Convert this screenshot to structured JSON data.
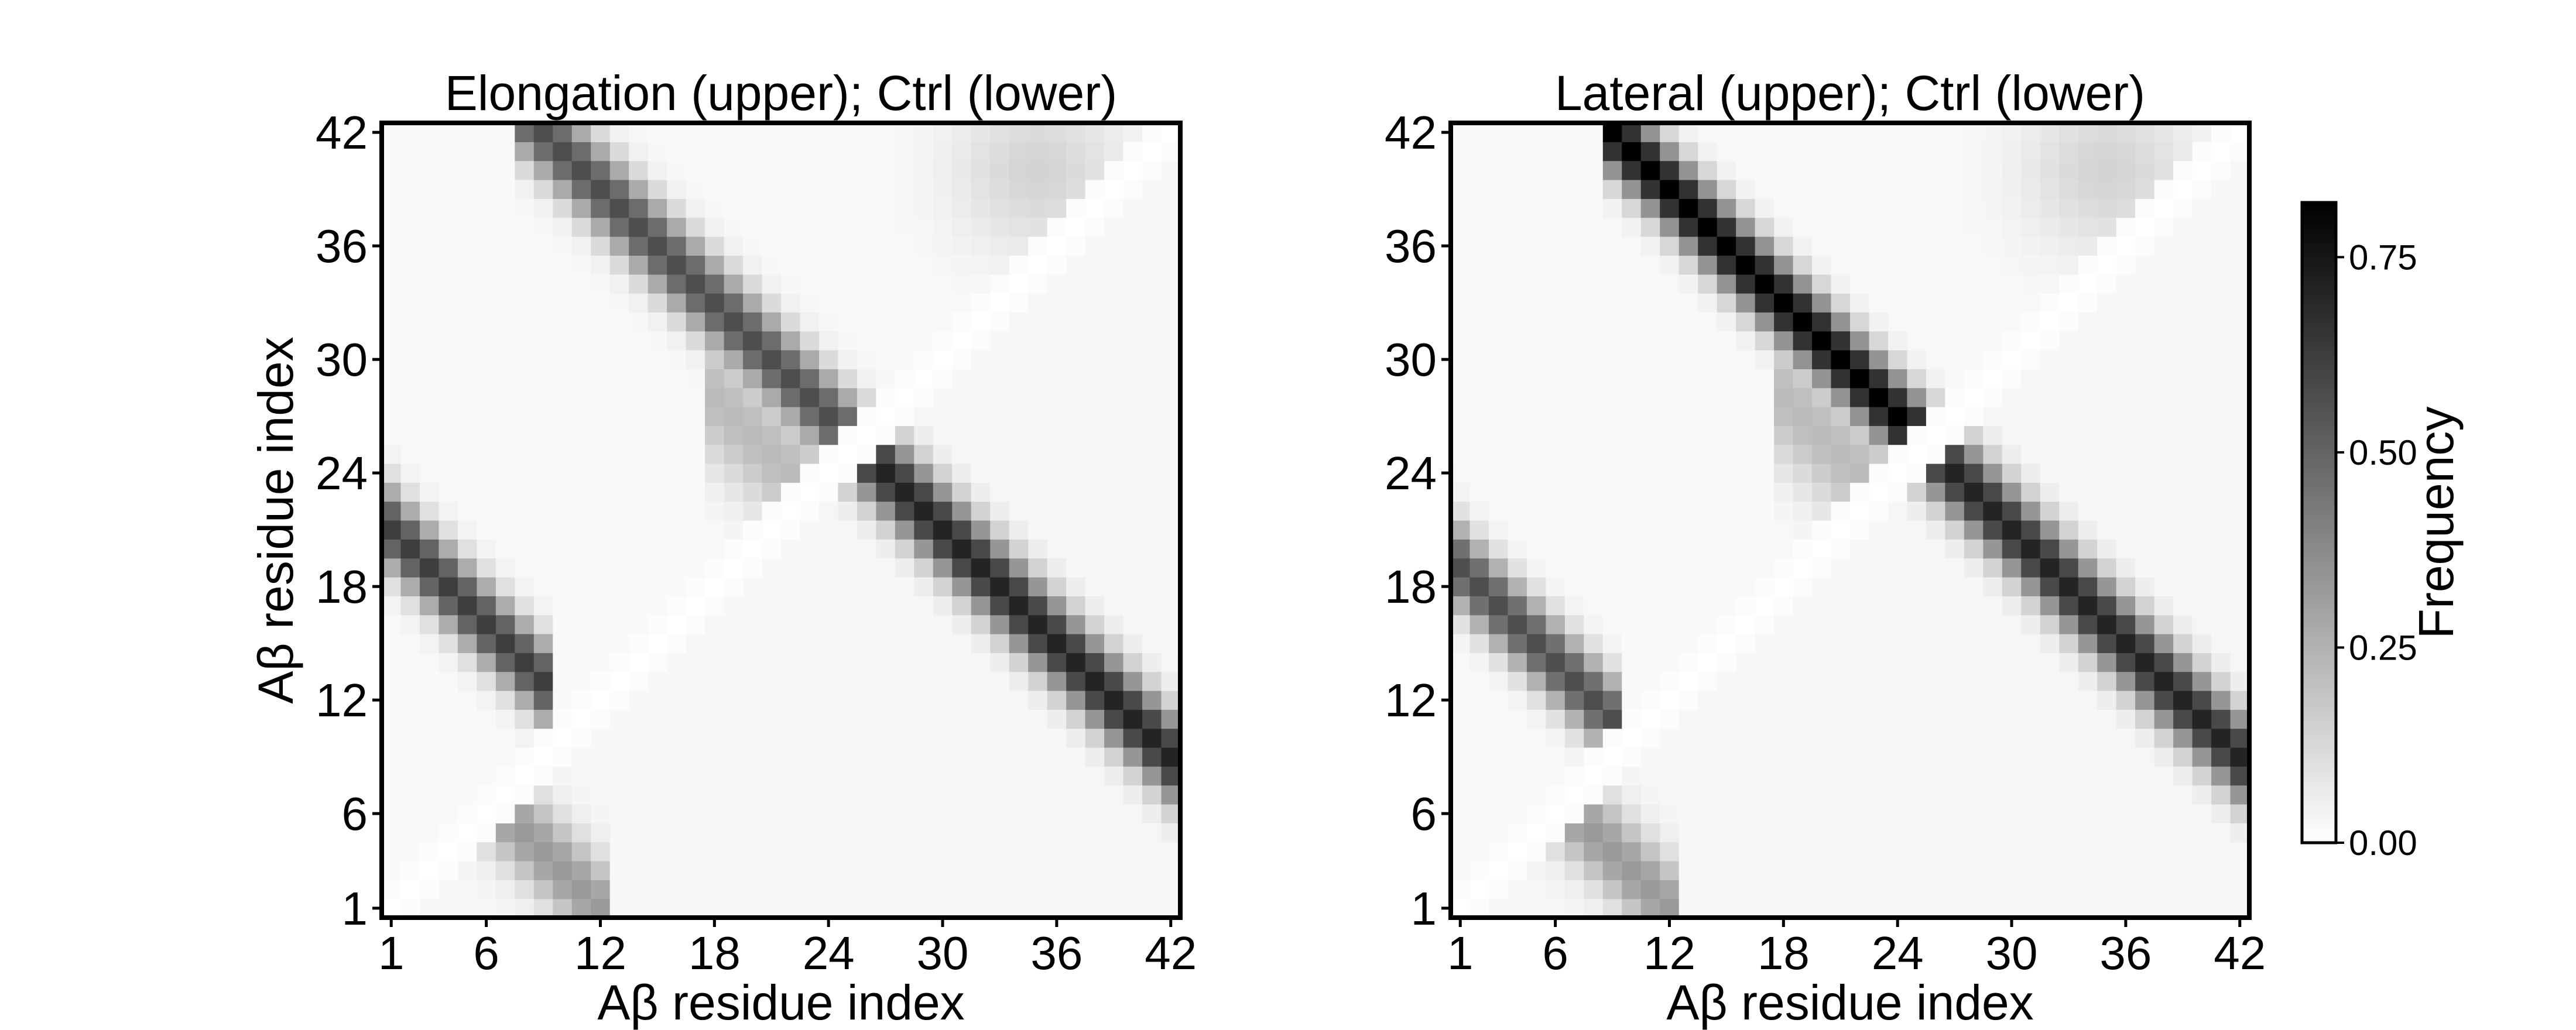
{
  "chart_data": [
    {
      "type": "heatmap",
      "title": "Elongation (upper); Ctrl (lower)",
      "xlabel": "Aβ residue index",
      "ylabel": "Aβ residue index",
      "x_range": [
        1,
        42
      ],
      "y_range": [
        1,
        42
      ],
      "xticks": [
        "1",
        "6",
        "12",
        "18",
        "24",
        "30",
        "36",
        "42"
      ],
      "yticks": [
        "1",
        "6",
        "12",
        "18",
        "24",
        "30",
        "36",
        "42"
      ],
      "upper_triangle": "Elongation",
      "lower_triangle": "Ctrl",
      "contact_bands": {
        "upper_antiparallel": [
          {
            "center": 51,
            "width": 1.6,
            "peak": 0.55,
            "i_from": 8,
            "i_to": 27
          },
          {
            "center": 22,
            "width": 1.5,
            "peak": 0.6,
            "i_from": 1,
            "i_to": 9
          },
          {
            "center": 46,
            "width": 2.5,
            "peak": 0.2,
            "i_from": 18,
            "i_to": 24
          }
        ],
        "lower_antiparallel": [
          {
            "center": 51,
            "width": 1.6,
            "peak": 0.68,
            "i_from": 24,
            "i_to": 42
          },
          {
            "center": 13,
            "width": 1.8,
            "peak": 0.3,
            "i_from": 5,
            "i_to": 12
          }
        ],
        "upper_corner": {
          "i_center": 35,
          "j_center": 40,
          "peak": 0.12
        }
      }
    },
    {
      "type": "heatmap",
      "title": "Lateral (upper); Ctrl (lower)",
      "xlabel": "Aβ residue index",
      "ylabel": "",
      "x_range": [
        1,
        42
      ],
      "y_range": [
        1,
        42
      ],
      "xticks": [
        "1",
        "6",
        "12",
        "18",
        "24",
        "30",
        "36",
        "42"
      ],
      "yticks": [
        "1",
        "6",
        "12",
        "18",
        "24",
        "30",
        "36",
        "42"
      ],
      "upper_triangle": "Lateral",
      "lower_triangle": "Ctrl",
      "contact_bands": {
        "upper_antiparallel": [
          {
            "center": 51,
            "width": 1.5,
            "peak": 0.8,
            "i_from": 9,
            "i_to": 27
          },
          {
            "center": 20,
            "width": 1.5,
            "peak": 0.55,
            "i_from": 1,
            "i_to": 9
          },
          {
            "center": 46,
            "width": 2.5,
            "peak": 0.2,
            "i_from": 18,
            "i_to": 24
          }
        ],
        "lower_antiparallel": [
          {
            "center": 51,
            "width": 1.6,
            "peak": 0.68,
            "i_from": 24,
            "i_to": 42
          },
          {
            "center": 13,
            "width": 1.8,
            "peak": 0.3,
            "i_from": 5,
            "i_to": 12
          }
        ],
        "upper_corner": {
          "i_center": 35,
          "j_center": 40,
          "peak": 0.12
        }
      }
    }
  ],
  "colorbar": {
    "label": "Frequency",
    "min": 0,
    "max": 0.82,
    "ticks": [
      "0.00",
      "0.25",
      "0.50",
      "0.75"
    ],
    "tick_values": [
      0,
      0.25,
      0.5,
      0.75
    ],
    "colormap": "Greys",
    "color_low": "#ffffff",
    "color_high": "#000000"
  }
}
